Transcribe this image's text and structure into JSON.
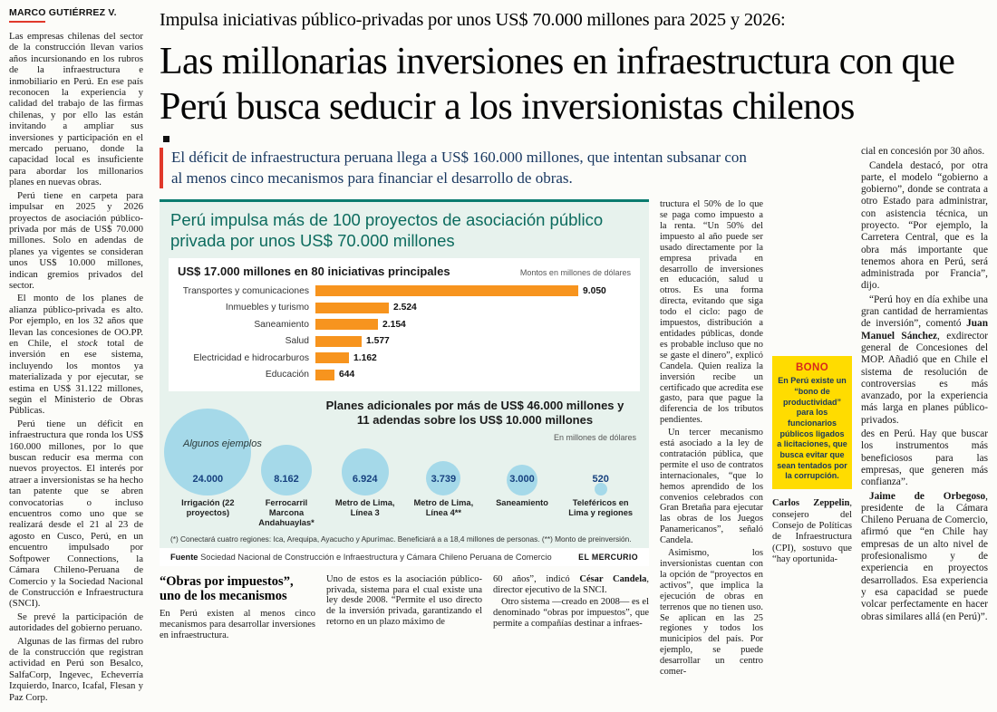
{
  "page": {
    "byline": "MARCO GUTIÉRREZ V.",
    "kicker": "Impulsa iniciativas público-privadas por unos US$ 70.000 millones para 2025 y 2026:",
    "headline": "Las millonarias inversiones en infraestructura con que Perú busca seducir a los inversionistas chilenos",
    "deck": "El déficit de infraestructura peruana llega a US$ 160.000 millones, que intentan subsanar con al menos cinco mecanismos para financiar el desarrollo de obras."
  },
  "left_column": {
    "p1": "Las empresas chilenas del sector de la construcción llevan varios años incursionando en los rubros de la infraestructura e inmobiliario en Perú. En ese país reconocen la experiencia y calidad del trabajo de las firmas chilenas, y por ello las están invitando a ampliar sus inversiones y participación en el mercado peruano, donde la capacidad local es insuficiente para abordar los millonarios planes en nuevas obras.",
    "p2": "Perú tiene en carpeta para impulsar en 2025 y 2026 proyectos de asociación público-privada por más de US$ 70.000 millones. Solo en adendas de planes ya vigentes se consideran unos US$ 10.000 millones, indican gremios privados del sector.",
    "p3_runs": [
      {
        "t": "El monto de los planes de alianza público-privada es alto. Por ejemplo, en los 32 años que llevan las concesiones de OO.PP. en Chile, el "
      },
      {
        "t": "stock",
        "i": true
      },
      {
        "t": " total de inversión en ese sistema, incluyendo los montos ya materializada y por ejecutar, se estima en US$ 31.122 millones, según el Ministerio de Obras Públicas."
      }
    ],
    "p4": "Perú tiene un déficit en infraestructura que ronda los US$ 160.000 millones, por lo que buscan reducir esa merma con nuevos proyectos. El interés por atraer a inversionistas se ha hecho tan patente que se abren convocatorias o incluso encuentros como uno que se realizará desde el 21 al 23 de agosto en Cusco, Perú, en un encuentro impulsado por Softpower Connections, la Cámara Chileno-Peruana de Comercio y la Sociedad Nacional de Construcción e Infraestructura (SNCI).",
    "p5": "Se prevé la participación de autoridades del gobierno peruano.",
    "p6": "Algunas de las firmas del rubro de la construcción que registran actividad en Perú son Besalco, SalfaCorp, Ingevec, Echeverría Izquierdo, Inarco, Icafal, Flesan y Paz Corp."
  },
  "infographic": {
    "title": "Perú impulsa más de 100 proyectos de asociación público privada por unos US$ 70.000 millones",
    "footnote": "(*) Conectará cuatro regiones: Ica, Arequipa, Ayacucho y Apurímac. Beneficiará a a 18,4 millones de personas. (**) Monto de preinversión.",
    "source_label": "Fuente",
    "source": "Sociedad Nacional de Construcción e Infraestructura y Cámara Chileno Peruana de Comercio",
    "credit": "EL MERCURIO"
  },
  "chart_data": [
    {
      "type": "bar",
      "orientation": "horizontal",
      "title": "US$ 17.000 millones en 80 iniciativas principales",
      "units_note": "Montos en millones de dólares",
      "categories": [
        "Transportes y comunicaciones",
        "Inmuebles y turismo",
        "Saneamiento",
        "Salud",
        "Electricidad e hidrocarburos",
        "Educación"
      ],
      "values": [
        9050,
        2524,
        2154,
        1577,
        1162,
        644
      ],
      "value_labels": [
        "9.050",
        "2.524",
        "2.154",
        "1.577",
        "1.162",
        "644"
      ],
      "bar_color": "#f7941e",
      "xlim": [
        0,
        9050
      ],
      "grid": false
    },
    {
      "type": "bubble",
      "title": "Planes adicionales por más de US$ 46.000 millones y 11 adendas sobre los US$ 10.000 millones",
      "units_note": "En millones de dólares",
      "side_label": "Algunos ejemplos",
      "categories": [
        "Irrigación (22 proyectos)",
        "Ferrocarril Marcona Andahuaylas*",
        "Metro de Lima, Línea 3",
        "Metro de Lima, Línea 4**",
        "Saneamiento",
        "Teleféricos en Lima y regiones"
      ],
      "values": [
        24000,
        8162,
        6924,
        3739,
        3000,
        520
      ],
      "value_labels": [
        "24.000",
        "8.162",
        "6.924",
        "3.739",
        "3.000",
        "520"
      ],
      "bubble_color": "#a5d9e9",
      "value_color": "#16407e"
    }
  ],
  "article": {
    "subhead": "“Obras por impuestos”, uno de los mecanismos",
    "col1_p1": "En Perú existen al menos cinco mecanismos para desarrollar inversiones en infraestructura.",
    "col2_p1": "Uno de estos es la asociación público-privada, sistema para el cual existe una ley desde 2008. “Permite el uso directo de la inversión privada, garantizando el retorno en un plazo máximo de",
    "col3_p1_runs": [
      {
        "t": "60 años”, indicó "
      },
      {
        "t": "César Candela",
        "b": true
      },
      {
        "t": ", director ejecutivo de la SNCI."
      }
    ],
    "col3_p2": "Otro sistema —creado en 2008— es el denominado “obras por impuestos”, que permite a compañías destinar a infraes-",
    "mid_p1": "tructura el 50% de lo que se paga como impuesto a la renta. “Un 50% del impuesto al año puede ser usado directamente por la empresa privada en desarrollo de inversiones en educación, salud u otros. Es una forma directa, evitando que siga todo el ciclo: pago de impuestos, distribución a entidades públicas, donde es probable incluso que no se gaste el dinero”, explicó Candela. Quien realiza la inversión recibe un certificado que acredita ese gasto, para que pague la diferencia de los tributos pendientes.",
    "mid_p2": "Un tercer mecanismo está asociado a la ley de contratación pública, que permite el uso de contratos internacionales, “que lo hemos aprendido de los convenios celebrados con Gran Bretaña para ejecutar las obras de los Juegos Panamericanos”, señaló Candela.",
    "mid_p3": "Asimismo, los inversionistas cuentan con la opción de “proyectos en activos”, que implica la ejecución de obras en terrenos que no tienen uso. Se aplican en las 25 regiones y todos los municipios del país. Por ejemplo, se puede desarrollar un centro comer-",
    "right_p1": "cial en concesión por 30 años.",
    "right_p2": "Candela destacó, por otra parte, el modelo “gobierno a gobierno”, donde se contrata a otro Estado para administrar, con asistencia técnica, un proyecto. “Por ejemplo, la Carretera Central, que es la obra más importante que tenemos ahora en Perú, será administrada por Francia”, dijo.",
    "right_p3_runs": [
      {
        "t": "“Perú hoy en día exhibe una gran cantidad de herramientas de inversión”, comentó "
      },
      {
        "t": "Juan Manuel Sánchez",
        "b": true
      },
      {
        "t": ", exdirector general de Concesiones del MOP. Añadió que en Chile el sistema de resolución de controversias es más avanzado, por la experiencia más larga en planes público-privados."
      }
    ],
    "zeppelin_runs": [
      {
        "t": "Carlos Zeppelin",
        "b": true
      },
      {
        "t": ", consejero del Consejo de Políticas de Infraestructura (CPI), sostuvo que “hay oportunida-"
      }
    ],
    "right_p4": "des en Perú. Hay que buscar los instrumentos más beneficiosos para las empresas, que generen más confianza”.",
    "right_p5_runs": [
      {
        "t": "Jaime de Orbegoso",
        "b": true
      },
      {
        "t": ", presidente de la Cámara Chileno Peruana de Comercio, afirmó que “en Chile hay empresas de un alto nivel de profesionalismo y de experiencia en proyectos desarrollados. Esa experiencia y esa capacidad se puede volcar perfectamente en hacer obras similares allá (en Perú)”."
      }
    ]
  },
  "bono_box": {
    "title": "BONO",
    "text": "En Perú existe un “bono de productividad” para los funcionarios públicos ligados a licitaciones, que busca evitar que sean tentados por la corrupción."
  },
  "colors": {
    "accent_red": "#e0392b",
    "deck_navy": "#17365f",
    "infographic_bg": "#e7f2ed",
    "infographic_teal": "#0a7b6f",
    "bar_orange": "#f7941e",
    "bubble_blue": "#a5d9e9",
    "bono_yellow": "#ffdc00"
  }
}
